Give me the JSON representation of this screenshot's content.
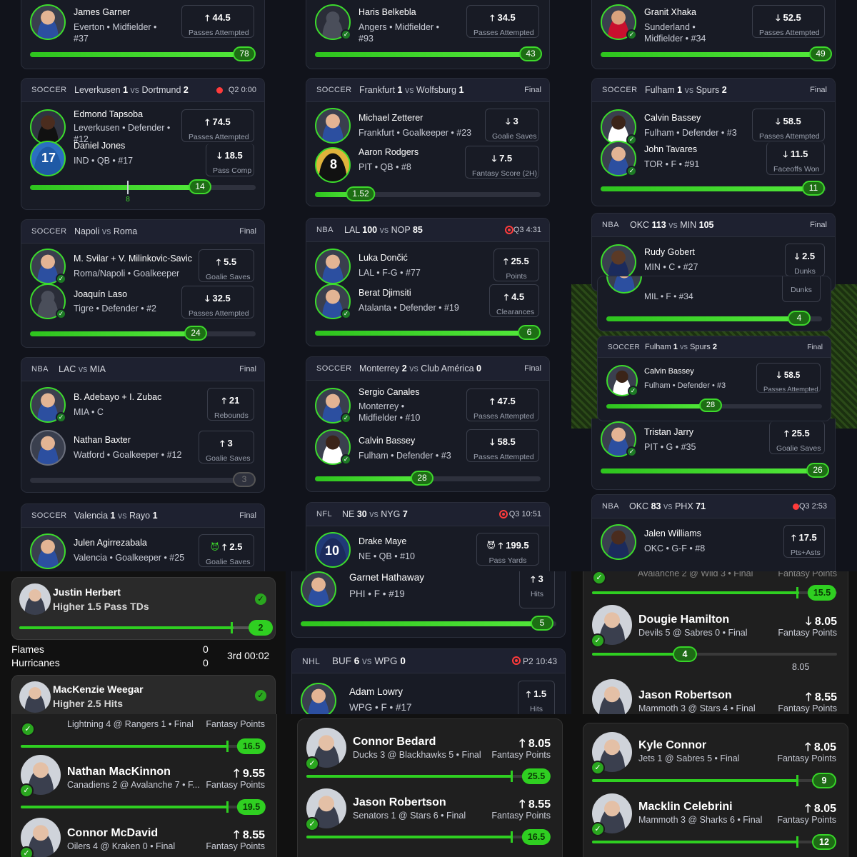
{
  "col1": {
    "top": {
      "name": "James Garner",
      "info": [
        "Everton • Midfielder •",
        "#37"
      ],
      "stat": "44.5",
      "label": "Passes Attempted",
      "dir": "up",
      "progress": 78
    },
    "c1": {
      "league": "SOCCER",
      "home": "Leverkusen",
      "hs": "1",
      "away": "Dortmund",
      "as": "2",
      "status": "Q2 0:00",
      "p1": {
        "name": "Edmond Tapsoba",
        "info": [
          "Leverkusen • Defender •",
          "#12"
        ],
        "stat": "74.5",
        "label": "Passes Attempted",
        "dir": "up"
      },
      "p2": {
        "name": "Daniel Jones",
        "info": [
          "IND • QB • #17"
        ],
        "stat": "18.5",
        "label": "Pass Comp",
        "dir": "down"
      },
      "progress": "14",
      "tick": "8"
    },
    "c2": {
      "league": "SOCCER",
      "home": "Napoli",
      "away": "Roma",
      "status": "Final",
      "p1": {
        "name": "M. Svilar + V. Milinkovic-Savic",
        "info": [
          "Roma/Napoli • Goalkeeper"
        ],
        "stat": "5.5",
        "label": "Goalie Saves",
        "dir": "up"
      },
      "p2": {
        "name": "Joaquín Laso",
        "info": [
          "Tigre • Defender • #2"
        ],
        "stat": "32.5",
        "label": "Passes Attempted",
        "dir": "down"
      },
      "progress": "24"
    },
    "c3": {
      "league": "NBA",
      "home": "LAC",
      "away": "MIA",
      "status": "Final",
      "p1": {
        "name": "B. Adebayo + I. Zubac",
        "info": [
          "MIA • C"
        ],
        "stat": "21",
        "label": "Rebounds",
        "dir": "up"
      },
      "p2": {
        "name": "Nathan Baxter",
        "info": [
          "Watford • Goalkeeper • #12"
        ],
        "stat": "3",
        "label": "Goalie Saves",
        "dir": "up"
      },
      "progress": "3"
    },
    "c4": {
      "league": "SOCCER",
      "home": "Valencia",
      "hs": "1",
      "away": "Rayo",
      "as": "1",
      "status": "Final",
      "p1": {
        "name": "Julen Agirrezabala",
        "info": [
          "Valencia • Goalkeeper • #25"
        ],
        "stat": "2.5",
        "label": "Goalie Saves",
        "dir": "up"
      }
    }
  },
  "col2": {
    "top": {
      "name": "Haris Belkebla",
      "info": [
        "Angers • Midfielder •",
        "#93"
      ],
      "stat": "34.5",
      "label": "Passes Attempted",
      "dir": "up",
      "progress": "43"
    },
    "c1": {
      "league": "SOCCER",
      "home": "Frankfurt",
      "hs": "1",
      "away": "Wolfsburg",
      "as": "1",
      "status": "Final",
      "p1": {
        "name": "Michael Zetterer",
        "info": [
          "Frankfurt • Goalkeeper • #23"
        ],
        "stat": "3",
        "label": "Goalie Saves",
        "dir": "down"
      },
      "p2": {
        "name": "Aaron Rodgers",
        "info": [
          "PIT • QB • #8"
        ],
        "stat": "7.5",
        "label": "Fantasy Score (2H)",
        "dir": "down"
      },
      "progress": "1.52"
    },
    "c2": {
      "league": "NBA",
      "home": "LAL",
      "hs": "100",
      "away": "NOP",
      "as": "85",
      "status": "Q3 4:31",
      "p1": {
        "name": "Luka Dončić",
        "info": [
          "LAL • F-G • #77"
        ],
        "stat": "25.5",
        "label": "Points",
        "dir": "up"
      },
      "p2": {
        "name": "Berat Djimsiti",
        "info": [
          "Atalanta • Defender • #19"
        ],
        "stat": "4.5",
        "label": "Clearances",
        "dir": "up"
      },
      "progress": "6"
    },
    "c3": {
      "league": "SOCCER",
      "home": "Monterrey",
      "hs": "2",
      "away": "Club América",
      "as": "0",
      "status": "Final",
      "p1": {
        "name": "Sergio Canales",
        "info": [
          "Monterrey •",
          "Midfielder • #10"
        ],
        "stat": "47.5",
        "label": "Passes Attempted",
        "dir": "up"
      },
      "p2": {
        "name": "Calvin Bassey",
        "info": [
          "Fulham • Defender • #3"
        ],
        "stat": "58.5",
        "label": "Passes Attempted",
        "dir": "down"
      },
      "progress": "28"
    },
    "c4": {
      "league": "NFL",
      "home": "NE",
      "hs": "30",
      "away": "NYG",
      "as": "7",
      "status": "Q3 10:51",
      "p1": {
        "name": "Drake Maye",
        "info": [
          "NE • QB • #10"
        ],
        "stat": "199.5",
        "label": "Pass Yards",
        "dir": "up"
      }
    }
  },
  "col3": {
    "top": {
      "name": "Granit Xhaka",
      "info": [
        "Sunderland •",
        "Midfielder • #34"
      ],
      "stat": "52.5",
      "label": "Passes Attempted",
      "dir": "down",
      "progress": "49"
    },
    "c1": {
      "league": "SOCCER",
      "home": "Fulham",
      "hs": "1",
      "away": "Spurs",
      "as": "2",
      "status": "Final",
      "p1": {
        "name": "Calvin Bassey",
        "info": [
          "Fulham • Defender • #3"
        ],
        "stat": "58.5",
        "label": "Passes Attempted",
        "dir": "down"
      },
      "p2": {
        "name": "John Tavares",
        "info": [
          "TOR • F • #91"
        ],
        "stat": "11.5",
        "label": "Faceoffs Won",
        "dir": "down"
      },
      "progress": "11"
    },
    "c2": {
      "league": "NBA",
      "home": "OKC",
      "hs": "113",
      "away": "MIN",
      "as": "105",
      "status": "Final",
      "p1": {
        "name": "Rudy Gobert",
        "info": [
          "MIN • C • #27"
        ],
        "stat": "2.5",
        "label": "Dunks",
        "dir": "down"
      }
    },
    "mid": {
      "info": "MIL • F • #34",
      "label": "Dunks",
      "progress": "4"
    },
    "c3": {
      "league": "SOCCER",
      "home": "Fulham",
      "hs": "1",
      "away": "Spurs",
      "as": "2",
      "status": "Final",
      "p1": {
        "name": "Calvin Bassey",
        "info": [
          "Fulham • Defender • #3"
        ],
        "stat": "58.5",
        "label": "Passes Attempted",
        "dir": "down"
      },
      "progress": "28"
    },
    "tj": {
      "name": "Tristan Jarry",
      "info": "PIT • G • #35",
      "stat": "25.5",
      "label": "Goalie Saves",
      "dir": "up",
      "progress": "26"
    },
    "c4": {
      "league": "NBA",
      "home": "OKC",
      "hs": "83",
      "away": "PHX",
      "as": "71",
      "status": "Q3 2:53",
      "p1": {
        "name": "Jalen Williams",
        "info": [
          "OKC • G-F • #8"
        ],
        "stat": "17.5",
        "label": "Pts+Asts",
        "dir": "up"
      }
    }
  },
  "row3": {
    "a1": {
      "name": "Justin Herbert",
      "line": "Higher 1.5 Pass TDs",
      "progress": "2"
    },
    "score": {
      "t1": "Flames",
      "s1": "0",
      "t2": "Hurricanes",
      "s2": "0",
      "clock": "3rd 00:02"
    },
    "a2": {
      "name": "MacKenzie Weegar",
      "line": "Higher 2.5 Hits"
    },
    "b1": {
      "name": "Garnet Hathaway",
      "info": "PHI • F • #19",
      "stat": "3",
      "label": "Hits",
      "dir": "up",
      "progress": "5"
    },
    "b2": {
      "league": "NHL",
      "home": "BUF",
      "hs": "6",
      "away": "WPG",
      "as": "0",
      "status": "P2 10:43",
      "p1": {
        "name": "Adam Lowry",
        "info": "WPG • F • #17",
        "stat": "1.5",
        "label": "Hits",
        "dir": "up"
      }
    },
    "c0": {
      "sub": "Avalanche 2 @ Wild 3 • Final",
      "label": "Fantasy Points",
      "progress": "15.5"
    },
    "c1": {
      "name": "Dougie Hamilton",
      "sub": "Devils 5 @ Sabres 0 • Final",
      "stat": "8.05",
      "label": "Fantasy Points",
      "dir": "down",
      "progress": "4",
      "tick": "8.05"
    },
    "c2": {
      "name": "Jason Robertson",
      "sub": "Mammoth 3 @ Stars 4 • Final",
      "stat": "8.55",
      "label": "Fantasy Points",
      "dir": "up"
    }
  },
  "row4": {
    "a0": {
      "sub": "Lightning 4 @ Rangers 1 • Final",
      "label": "Fantasy Points",
      "progress": "16.5"
    },
    "a1": {
      "name": "Nathan MacKinnon",
      "sub": "Canadiens 2 @ Avalanche 7 • F...",
      "stat": "9.55",
      "label": "Fantasy Points",
      "dir": "up",
      "progress": "19.5"
    },
    "a2": {
      "name": "Connor McDavid",
      "sub": "Oilers 4 @ Kraken 0 • Final",
      "stat": "8.55",
      "label": "Fantasy Points",
      "dir": "up"
    },
    "b1": {
      "name": "Connor Bedard",
      "sub": "Ducks 3 @ Blackhawks 5 • Final",
      "stat": "8.05",
      "label": "Fantasy Points",
      "dir": "up",
      "progress": "25.5"
    },
    "b2": {
      "name": "Jason Robertson",
      "sub": "Senators 1 @ Stars 6 • Final",
      "stat": "8.55",
      "label": "Fantasy Points",
      "dir": "up",
      "progress": "16.5"
    },
    "c1": {
      "name": "Kyle Connor",
      "sub": "Jets 1 @ Sabres 5 • Final",
      "stat": "8.05",
      "label": "Fantasy Points",
      "dir": "up",
      "progress": "9"
    },
    "c2": {
      "name": "Macklin Celebrini",
      "sub": "Mammoth 3 @ Sharks 6 • Final",
      "stat": "8.05",
      "label": "Fantasy Points",
      "dir": "up",
      "progress": "12"
    }
  },
  "arrows": {
    "up": "🡑",
    "down": "🡓"
  },
  "colors": {
    "accent": "#3ed92c",
    "live": "#ff3b3b",
    "card": "#181b25"
  }
}
